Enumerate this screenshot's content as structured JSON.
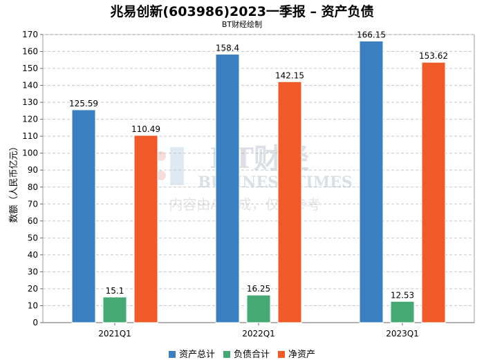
{
  "chart_data": {
    "type": "bar",
    "title": "兆易创新(603986)2023一季报 – 资产负债",
    "subtitle": "BT财经绘制",
    "ylabel": "数额（人民币亿元）",
    "xlabel": "",
    "categories": [
      "2021Q1",
      "2022Q1",
      "2023Q1"
    ],
    "ylim": [
      0,
      170
    ],
    "ytick_step": 10,
    "grid": true,
    "legend_position": "bottom-center",
    "series": [
      {
        "name": "资产总计",
        "color": "#3a80c0",
        "values": [
          125.59,
          158.4,
          166.15
        ],
        "labels": [
          "125.59",
          "158.4",
          "166.15"
        ]
      },
      {
        "name": "负债合计",
        "color": "#45a875",
        "values": [
          15.1,
          16.25,
          12.53
        ],
        "labels": [
          "15.1",
          "16.25",
          "12.53"
        ]
      },
      {
        "name": "净资产",
        "color": "#f05a28",
        "values": [
          110.49,
          142.15,
          153.62
        ],
        "labels": [
          "110.49",
          "142.15",
          "153.62"
        ]
      }
    ]
  },
  "watermark": {
    "brand": "BT财经",
    "brand_en": "BUSINESS TIMES",
    "notice": "内容由AI生成，仅供参考"
  }
}
